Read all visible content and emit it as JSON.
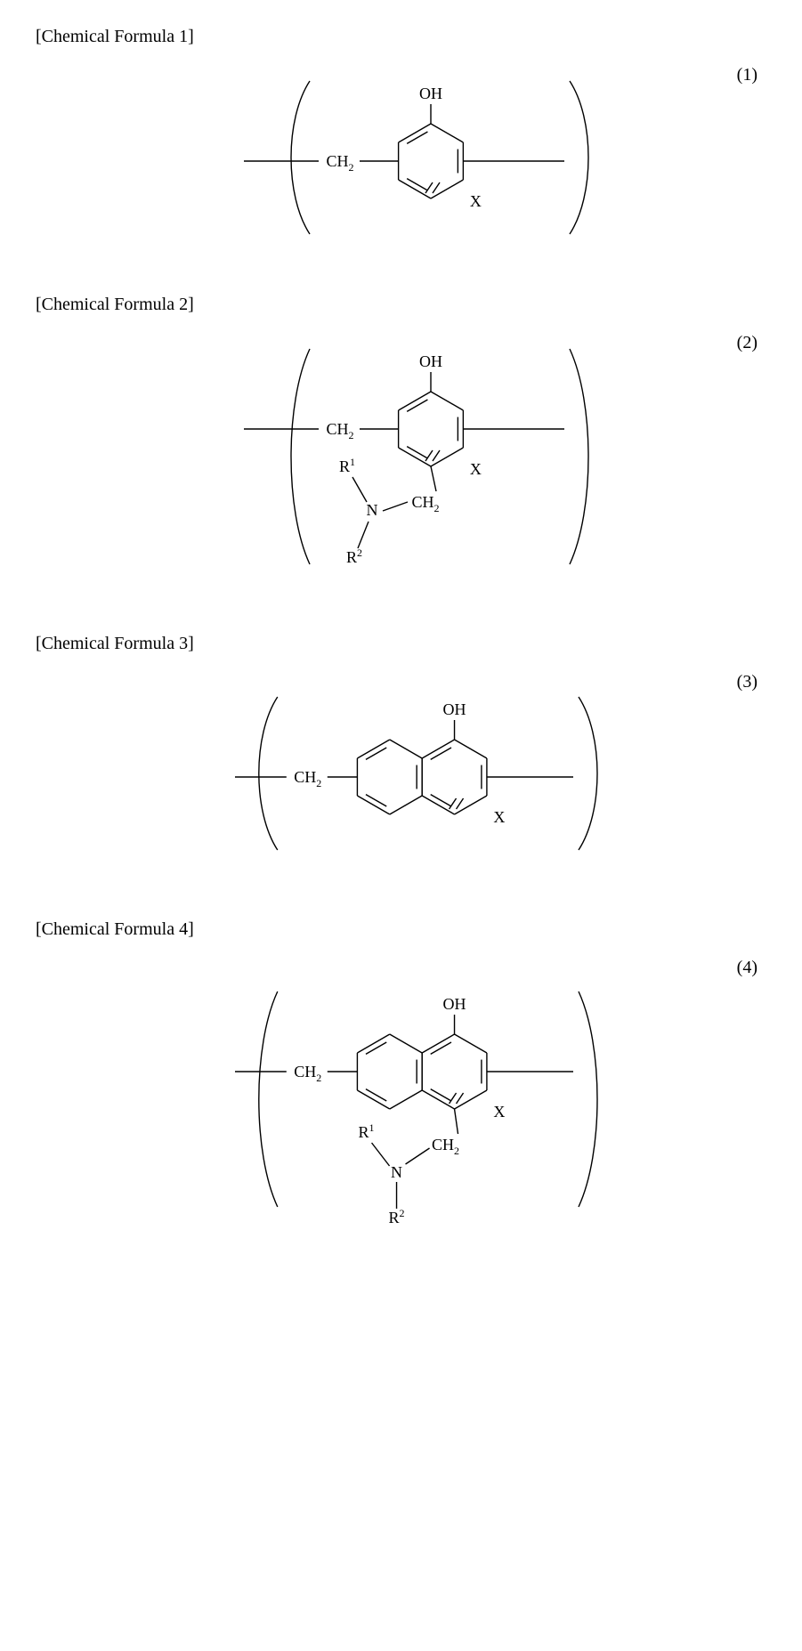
{
  "formulas": [
    {
      "label": "[Chemical Formula 1]",
      "number": "(1)",
      "type": "phenol",
      "top_group": "OH",
      "x_group": "X",
      "ch2_left": "CH",
      "ch2_sub": "2",
      "has_amino": false,
      "has_naphthalene": false
    },
    {
      "label": "[Chemical Formula 2]",
      "number": "(2)",
      "type": "phenol-amino",
      "top_group": "OH",
      "x_group": "X",
      "ch2_left": "CH",
      "ch2_sub": "2",
      "has_amino": true,
      "has_naphthalene": false,
      "amino": {
        "N": "N",
        "R1": "R",
        "R1_sup": "1",
        "R2": "R",
        "R2_sup": "2",
        "ch2": "CH",
        "ch2_sub": "2"
      }
    },
    {
      "label": "[Chemical Formula 3]",
      "number": "(3)",
      "type": "naphthol",
      "top_group": "OH",
      "x_group": "X",
      "ch2_left": "CH",
      "ch2_sub": "2",
      "has_amino": false,
      "has_naphthalene": true
    },
    {
      "label": "[Chemical Formula 4]",
      "number": "(4)",
      "type": "naphthol-amino",
      "top_group": "OH",
      "x_group": "X",
      "ch2_left": "CH",
      "ch2_sub": "2",
      "has_amino": true,
      "has_naphthalene": true,
      "amino": {
        "N": "N",
        "R1": "R",
        "R1_sup": "1",
        "R2": "R",
        "R2_sup": "2",
        "ch2": "CH",
        "ch2_sub": "2"
      }
    }
  ],
  "style": {
    "stroke": "#000000",
    "stroke_width": 1.4,
    "font_size_label": 20,
    "font_size_atom": 18,
    "font_size_sub": 12,
    "background": "#ffffff"
  }
}
